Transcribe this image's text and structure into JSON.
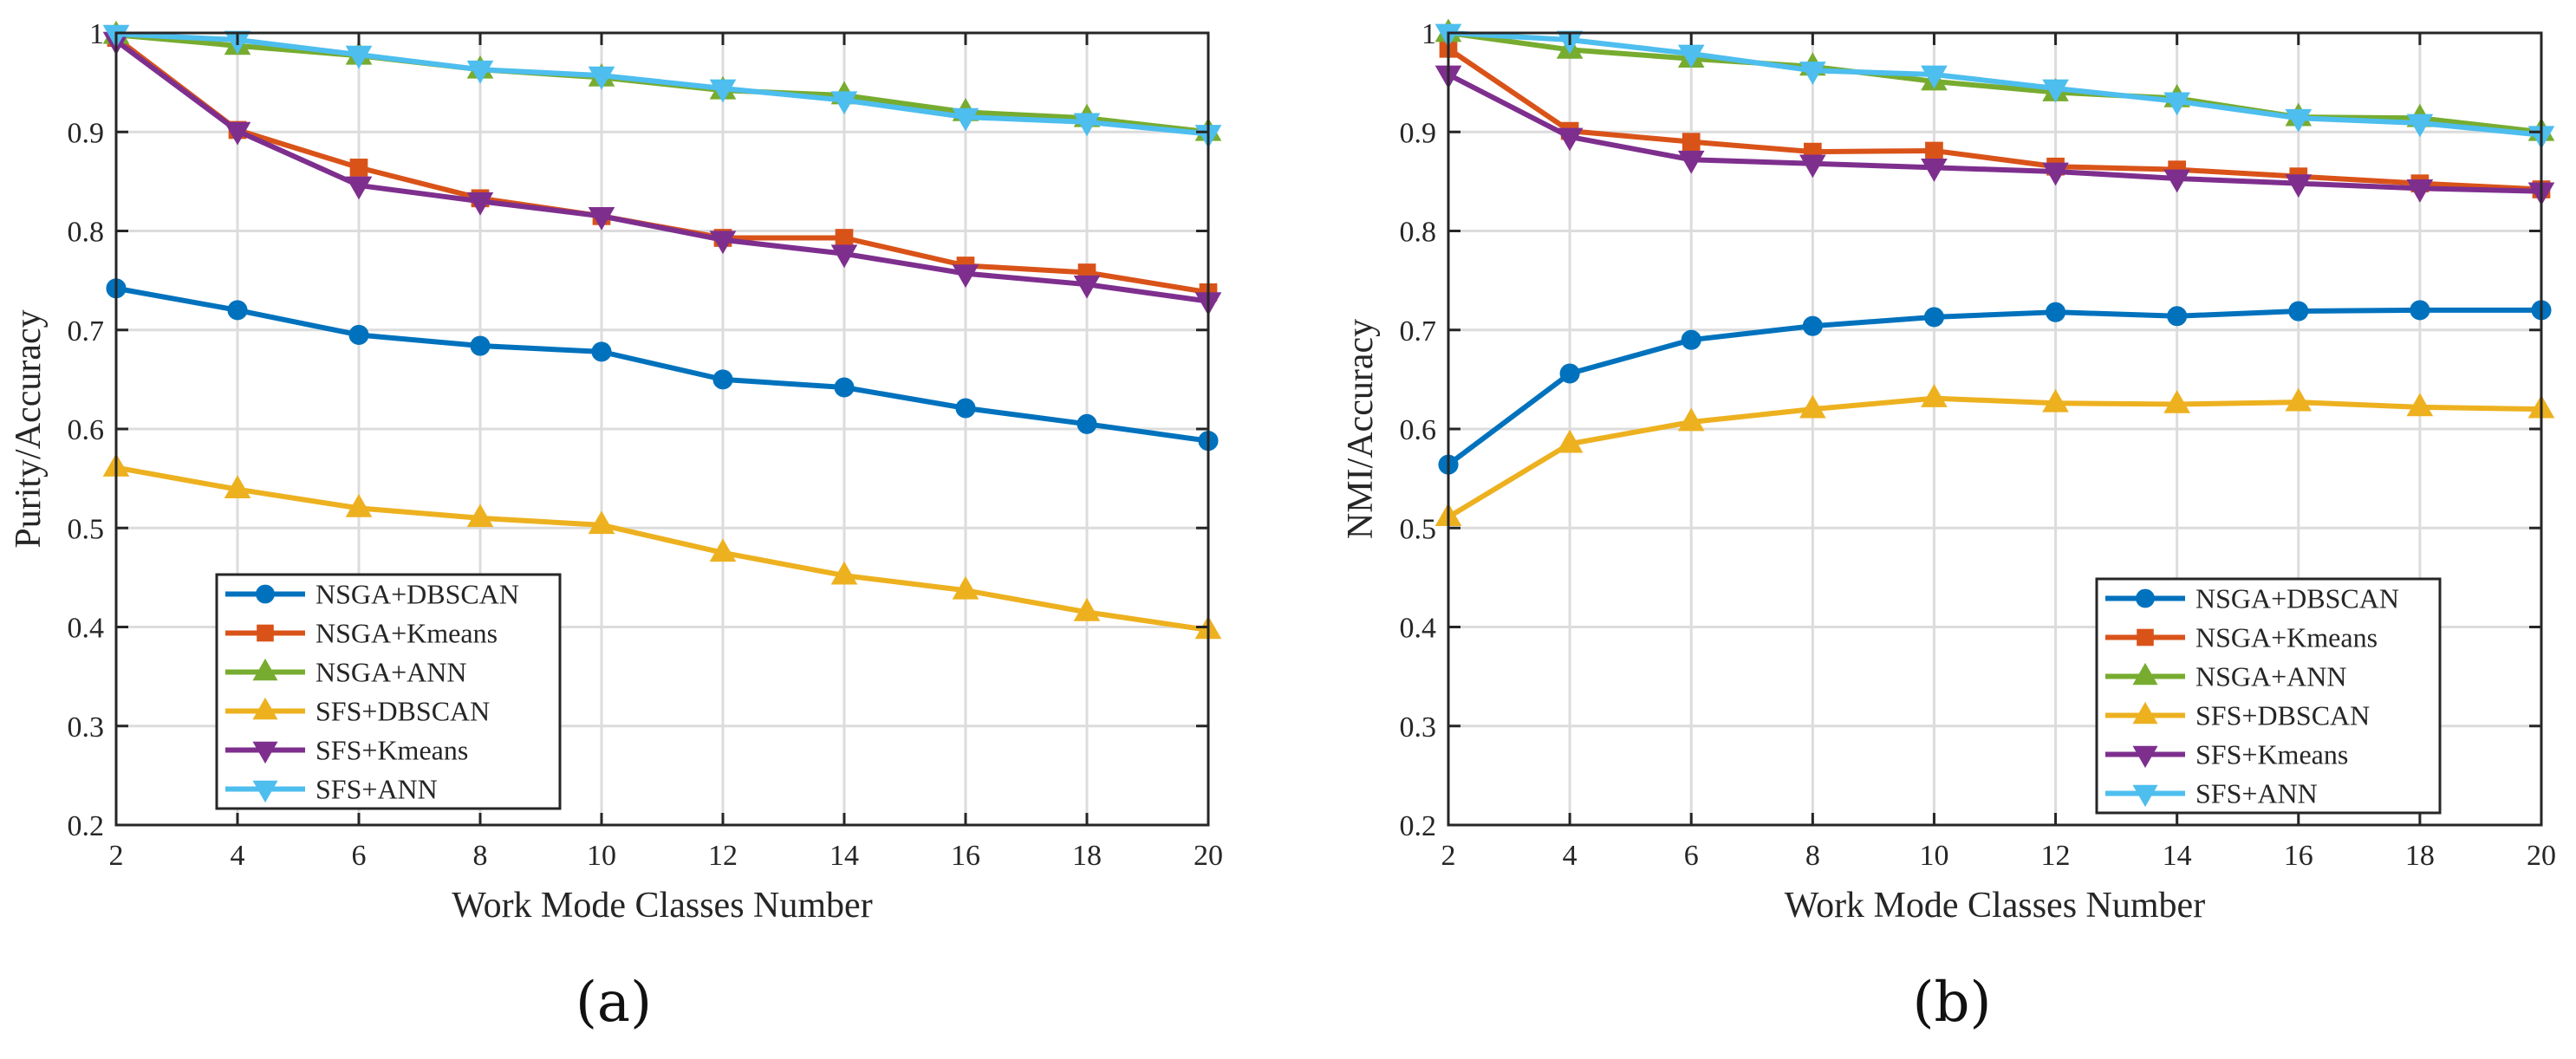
{
  "colors": {
    "NSGA+DBSCAN": "#0072BD",
    "NSGA+Kmeans": "#D95319",
    "NSGA+ANN": "#77AC30",
    "SFS+DBSCAN": "#EDB120",
    "SFS+Kmeans": "#7E2F8E",
    "SFS+ANN": "#4DBEEE"
  },
  "chart_data": [
    {
      "type": "line",
      "panel_label": "(a)",
      "title": "",
      "xlabel": "Work Mode Classes Number",
      "ylabel": "Purity/Accuracy",
      "x": [
        2,
        4,
        6,
        8,
        10,
        12,
        14,
        16,
        18,
        20
      ],
      "xlim": [
        2,
        20
      ],
      "ylim": [
        0.2,
        1
      ],
      "xticks": [
        "2",
        "4",
        "6",
        "8",
        "10",
        "12",
        "14",
        "16",
        "18",
        "20"
      ],
      "yticks": [
        "0.2",
        "0.3",
        "0.4",
        "0.5",
        "0.6",
        "0.7",
        "0.8",
        "0.9",
        "1"
      ],
      "grid": true,
      "legend_position": "bottom-left",
      "series": [
        {
          "name": "NSGA+DBSCAN",
          "marker": "circle",
          "values": [
            0.742,
            0.72,
            0.695,
            0.684,
            0.678,
            0.65,
            0.642,
            0.621,
            0.605,
            0.588
          ]
        },
        {
          "name": "NSGA+Kmeans",
          "marker": "square",
          "values": [
            0.995,
            0.902,
            0.864,
            0.833,
            0.815,
            0.793,
            0.793,
            0.765,
            0.758,
            0.738
          ]
        },
        {
          "name": "NSGA+ANN",
          "marker": "triangle-up",
          "values": [
            0.998,
            0.987,
            0.977,
            0.963,
            0.955,
            0.942,
            0.937,
            0.92,
            0.914,
            0.9
          ]
        },
        {
          "name": "SFS+DBSCAN",
          "marker": "triangle-up",
          "values": [
            0.561,
            0.539,
            0.52,
            0.51,
            0.503,
            0.475,
            0.452,
            0.437,
            0.415,
            0.397
          ]
        },
        {
          "name": "SFS+Kmeans",
          "marker": "triangle-down",
          "values": [
            0.992,
            0.901,
            0.846,
            0.83,
            0.815,
            0.791,
            0.777,
            0.757,
            0.746,
            0.729
          ]
        },
        {
          "name": "SFS+ANN",
          "marker": "triangle-down",
          "values": [
            0.999,
            0.993,
            0.978,
            0.963,
            0.957,
            0.944,
            0.932,
            0.915,
            0.91,
            0.898
          ]
        }
      ]
    },
    {
      "type": "line",
      "panel_label": "(b)",
      "title": "",
      "xlabel": "Work Mode Classes Number",
      "ylabel": "NMI/Accuracy",
      "x": [
        2,
        4,
        6,
        8,
        10,
        12,
        14,
        16,
        18,
        20
      ],
      "xlim": [
        2,
        20
      ],
      "ylim": [
        0.2,
        1
      ],
      "xticks": [
        "2",
        "4",
        "6",
        "8",
        "10",
        "12",
        "14",
        "16",
        "18",
        "20"
      ],
      "yticks": [
        "0.2",
        "0.3",
        "0.4",
        "0.5",
        "0.6",
        "0.7",
        "0.8",
        "0.9",
        "1"
      ],
      "grid": true,
      "legend_position": "bottom-right",
      "series": [
        {
          "name": "NSGA+DBSCAN",
          "marker": "circle",
          "values": [
            0.564,
            0.656,
            0.69,
            0.704,
            0.713,
            0.718,
            0.714,
            0.719,
            0.72,
            0.72
          ]
        },
        {
          "name": "NSGA+Kmeans",
          "marker": "square",
          "values": [
            0.984,
            0.901,
            0.89,
            0.88,
            0.881,
            0.865,
            0.862,
            0.855,
            0.848,
            0.842
          ]
        },
        {
          "name": "NSGA+ANN",
          "marker": "triangle-up",
          "values": [
            1.0,
            0.983,
            0.974,
            0.966,
            0.951,
            0.94,
            0.934,
            0.915,
            0.914,
            0.9
          ]
        },
        {
          "name": "SFS+DBSCAN",
          "marker": "triangle-up",
          "values": [
            0.511,
            0.585,
            0.607,
            0.62,
            0.631,
            0.626,
            0.625,
            0.627,
            0.622,
            0.62
          ]
        },
        {
          "name": "SFS+Kmeans",
          "marker": "triangle-down",
          "values": [
            0.958,
            0.895,
            0.872,
            0.868,
            0.864,
            0.86,
            0.853,
            0.848,
            0.843,
            0.84
          ]
        },
        {
          "name": "SFS+ANN",
          "marker": "triangle-down",
          "values": [
            1.0,
            0.993,
            0.979,
            0.962,
            0.958,
            0.944,
            0.931,
            0.914,
            0.909,
            0.897
          ]
        }
      ]
    }
  ]
}
